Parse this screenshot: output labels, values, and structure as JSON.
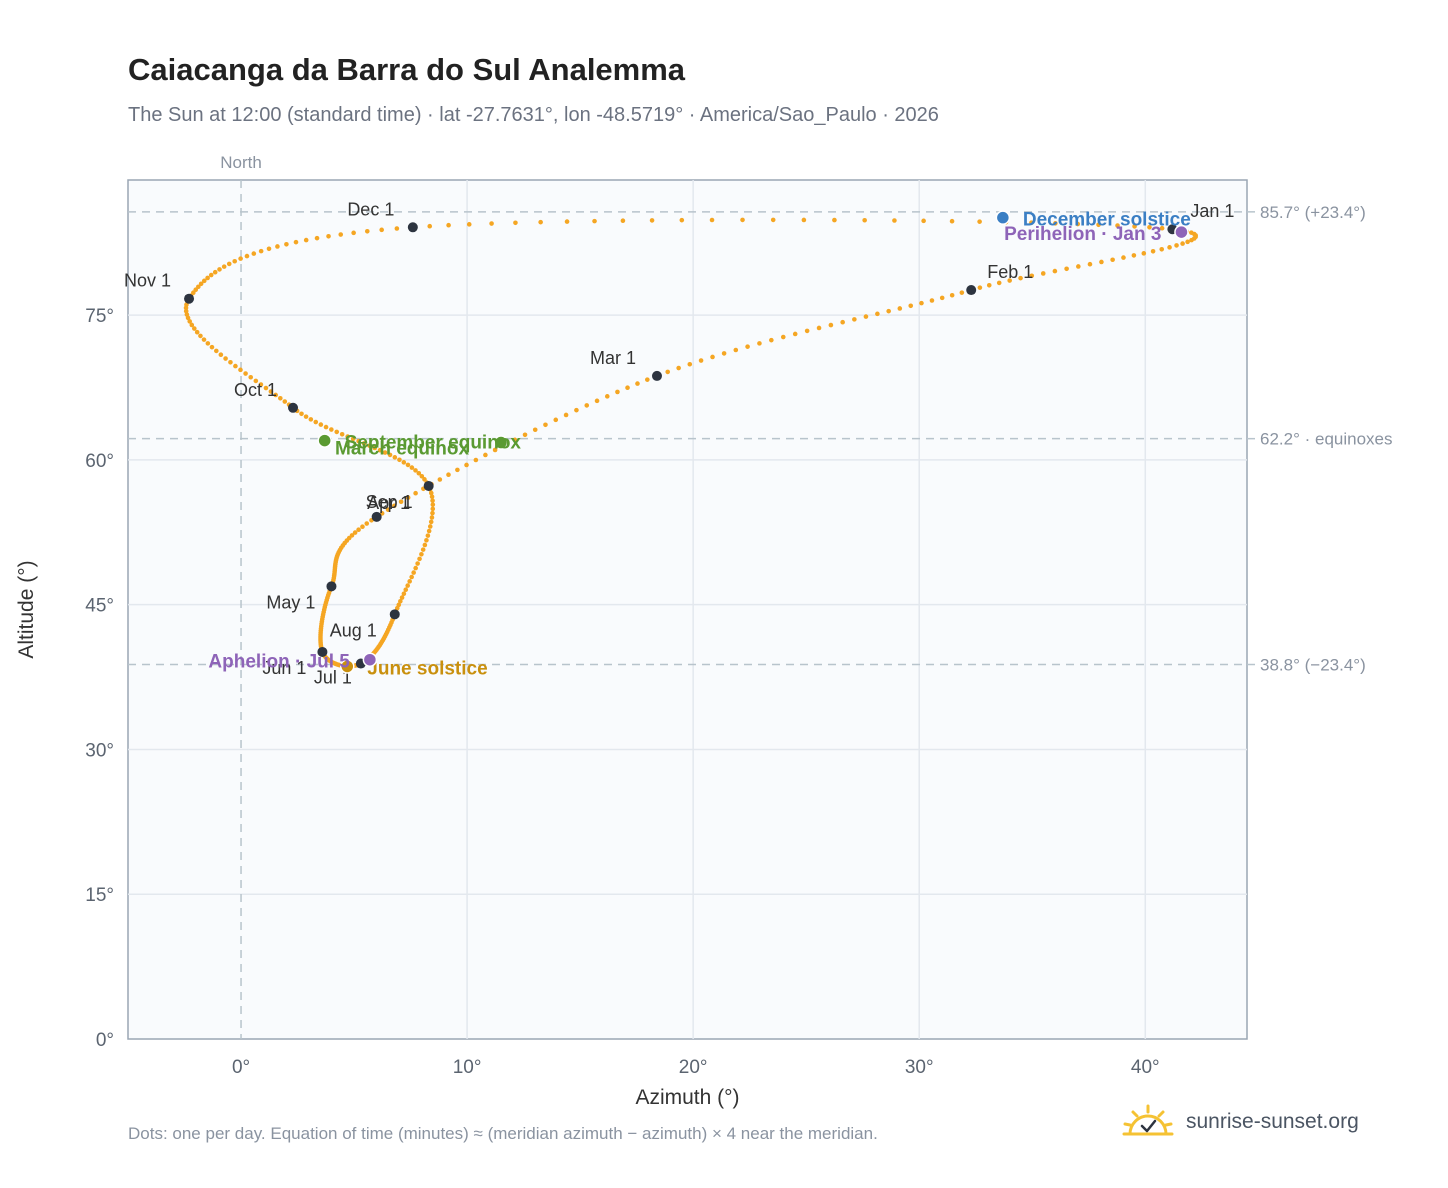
{
  "title": "Caiacanga da Barra do Sul Analemma",
  "subtitle": "The Sun at 12:00 (standard time) · lat -27.7631°, lon -48.5719° · America/Sao_Paulo · 2026",
  "footnote": "Dots: one per day. Equation of time (minutes) ≈ (meridian azimuth − azimuth) × 4 near the meridian.",
  "brand": {
    "name": "sunrise-sunset.org",
    "logo_icon": "sun-check-icon"
  },
  "colors": {
    "analemma": "#f5a623",
    "month_marker": "#2d3440",
    "equinox": "#5a9a32",
    "june_solstice": "#c9900e",
    "december_solstice": "#3b7fc4",
    "apsis": "#8e64b8",
    "reference_line": "#b8c4cc",
    "grid": "#e3e8ee",
    "plot_bg": "#f9fbfd"
  },
  "chart_data": {
    "type": "scatter",
    "xlabel": "Azimuth (°)",
    "ylabel": "Altitude (°)",
    "xlim": [
      -5,
      44.5
    ],
    "ylim": [
      0,
      89
    ],
    "x_ticks": [
      {
        "value": 0,
        "label": "0°"
      },
      {
        "value": 10,
        "label": "10°"
      },
      {
        "value": 20,
        "label": "20°"
      },
      {
        "value": 30,
        "label": "30°"
      },
      {
        "value": 40,
        "label": "40°"
      }
    ],
    "y_ticks": [
      {
        "value": 0,
        "label": "0°"
      },
      {
        "value": 15,
        "label": "15°"
      },
      {
        "value": 30,
        "label": "30°"
      },
      {
        "value": 45,
        "label": "45°"
      },
      {
        "value": 60,
        "label": "60°"
      },
      {
        "value": 75,
        "label": "75°"
      }
    ],
    "north_line": {
      "azimuth": 0,
      "label": "North"
    },
    "reference_lines": [
      {
        "altitude": 85.7,
        "label": "85.7° (+23.4°)"
      },
      {
        "altitude": 62.2,
        "label": "62.2° · equinoxes"
      },
      {
        "altitude": 38.8,
        "label": "38.8° (−23.4°)"
      }
    ],
    "series": [
      {
        "points": [
          {
            "date": "Jan 1",
            "az": 41.2,
            "alt": 83.9
          },
          {
            "date": "Feb 1",
            "az": 32.3,
            "alt": 77.6
          },
          {
            "date": "Mar 1",
            "az": 18.4,
            "alt": 68.7
          },
          {
            "date": "Apr 1",
            "az": 6.0,
            "alt": 54.1
          },
          {
            "date": "May 1",
            "az": 4.0,
            "alt": 46.9
          },
          {
            "date": "Jun 1",
            "az": 3.6,
            "alt": 40.1
          },
          {
            "date": "Jul 1",
            "az": 5.3,
            "alt": 38.9
          },
          {
            "date": "Aug 1",
            "az": 6.8,
            "alt": 44.0
          },
          {
            "date": "Sep 1",
            "az": 8.3,
            "alt": 57.3
          },
          {
            "date": "Oct 1",
            "az": 2.3,
            "alt": 65.4
          },
          {
            "date": "Nov 1",
            "az": -2.3,
            "alt": 76.7
          },
          {
            "date": "Dec 1",
            "az": 7.6,
            "alt": 84.1
          }
        ]
      }
    ],
    "events": [
      {
        "label": "March equinox",
        "az": 11.5,
        "alt": 61.8,
        "kind": "equinox"
      },
      {
        "label": "September equinox",
        "az": 3.7,
        "alt": 62.0,
        "kind": "equinox"
      },
      {
        "label": "June solstice",
        "az": 4.7,
        "alt": 38.6,
        "kind": "june_solstice"
      },
      {
        "label": "December solstice",
        "az": 33.7,
        "alt": 85.1,
        "kind": "december_solstice"
      },
      {
        "label": "Perihelion · Jan 3",
        "az": 41.6,
        "alt": 83.6,
        "kind": "apsis"
      },
      {
        "label": "Aphelion · Jul 5",
        "az": 5.7,
        "alt": 39.3,
        "kind": "apsis"
      }
    ]
  }
}
